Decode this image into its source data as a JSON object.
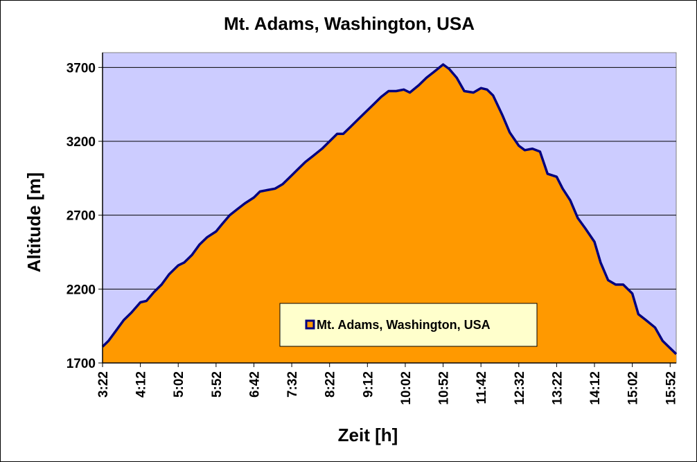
{
  "chart_data": {
    "type": "area",
    "title": "Mt. Adams, Washington, USA",
    "xlabel": "Zeit [h]",
    "ylabel": "Altitude [m]",
    "ylim": [
      1700,
      3800
    ],
    "yticks": [
      1700,
      2200,
      2700,
      3200,
      3700
    ],
    "xtick_labels": [
      "3:22",
      "4:12",
      "5:02",
      "5:52",
      "6:42",
      "7:32",
      "8:22",
      "9:12",
      "10:02",
      "10:52",
      "11:42",
      "12:32",
      "13:22",
      "14:12",
      "15:02",
      "15:52"
    ],
    "grid": true,
    "legend": "center-bottom",
    "series": [
      {
        "name": "Mt. Adams, Washington, USA",
        "points": [
          [
            "3:22",
            1810
          ],
          [
            "3:30",
            1850
          ],
          [
            "3:40",
            1920
          ],
          [
            "3:50",
            1990
          ],
          [
            "4:00",
            2040
          ],
          [
            "4:12",
            2110
          ],
          [
            "4:20",
            2120
          ],
          [
            "4:30",
            2180
          ],
          [
            "4:40",
            2230
          ],
          [
            "4:50",
            2300
          ],
          [
            "5:02",
            2360
          ],
          [
            "5:10",
            2380
          ],
          [
            "5:20",
            2430
          ],
          [
            "5:30",
            2500
          ],
          [
            "5:40",
            2550
          ],
          [
            "5:52",
            2590
          ],
          [
            "6:00",
            2640
          ],
          [
            "6:10",
            2700
          ],
          [
            "6:20",
            2740
          ],
          [
            "6:30",
            2780
          ],
          [
            "6:42",
            2820
          ],
          [
            "6:50",
            2860
          ],
          [
            "7:00",
            2870
          ],
          [
            "7:10",
            2880
          ],
          [
            "7:20",
            2910
          ],
          [
            "7:32",
            2970
          ],
          [
            "7:40",
            3010
          ],
          [
            "7:50",
            3060
          ],
          [
            "8:00",
            3100
          ],
          [
            "8:12",
            3150
          ],
          [
            "8:22",
            3200
          ],
          [
            "8:32",
            3250
          ],
          [
            "8:40",
            3250
          ],
          [
            "8:50",
            3300
          ],
          [
            "9:00",
            3350
          ],
          [
            "9:12",
            3410
          ],
          [
            "9:20",
            3450
          ],
          [
            "9:30",
            3500
          ],
          [
            "9:40",
            3540
          ],
          [
            "9:50",
            3540
          ],
          [
            "10:00",
            3550
          ],
          [
            "10:08",
            3530
          ],
          [
            "10:20",
            3580
          ],
          [
            "10:30",
            3630
          ],
          [
            "10:40",
            3670
          ],
          [
            "10:52",
            3720
          ],
          [
            "11:00",
            3690
          ],
          [
            "11:10",
            3630
          ],
          [
            "11:20",
            3540
          ],
          [
            "11:32",
            3530
          ],
          [
            "11:42",
            3560
          ],
          [
            "11:50",
            3550
          ],
          [
            "11:58",
            3510
          ],
          [
            "12:10",
            3380
          ],
          [
            "12:20",
            3260
          ],
          [
            "12:32",
            3170
          ],
          [
            "12:40",
            3140
          ],
          [
            "12:50",
            3150
          ],
          [
            "13:00",
            3130
          ],
          [
            "13:10",
            2980
          ],
          [
            "13:22",
            2960
          ],
          [
            "13:30",
            2880
          ],
          [
            "13:40",
            2800
          ],
          [
            "13:50",
            2680
          ],
          [
            "14:00",
            2610
          ],
          [
            "14:12",
            2520
          ],
          [
            "14:20",
            2380
          ],
          [
            "14:30",
            2260
          ],
          [
            "14:40",
            2230
          ],
          [
            "14:50",
            2230
          ],
          [
            "15:02",
            2170
          ],
          [
            "15:10",
            2030
          ],
          [
            "15:20",
            1990
          ],
          [
            "15:32",
            1940
          ],
          [
            "15:42",
            1850
          ],
          [
            "15:52",
            1800
          ],
          [
            "16:00",
            1760
          ]
        ]
      }
    ],
    "colors": {
      "plot_background": "#ccccff",
      "area_fill": "#ff9900",
      "area_line": "#000080",
      "grid": "#000000",
      "legend_background": "#ffffcc"
    }
  }
}
